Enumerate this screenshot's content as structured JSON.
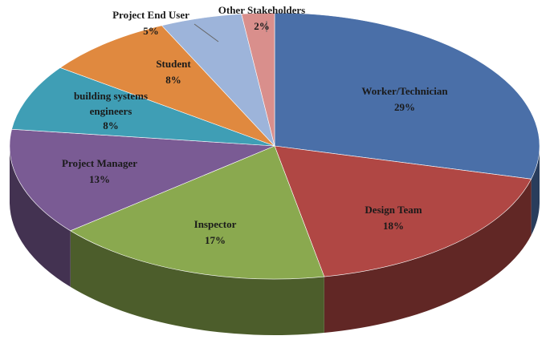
{
  "chart_data": {
    "type": "pie",
    "title": "",
    "slices": [
      {
        "label": "Worker/Technician",
        "value": 29,
        "display": "29%",
        "color": "#4a6fa8"
      },
      {
        "label": "Design Team",
        "value": 18,
        "display": "18%",
        "color": "#b04744"
      },
      {
        "label": "Inspector",
        "value": 17,
        "display": "17%",
        "color": "#8aa94f"
      },
      {
        "label": "Project Manager",
        "value": 13,
        "display": "13%",
        "color": "#7a5b94"
      },
      {
        "label": "building systems engineers",
        "label_lines": [
          "building systems",
          "engineers"
        ],
        "value": 8,
        "display": "8%",
        "color": "#3f9eb5"
      },
      {
        "label": "Student",
        "value": 8,
        "display": "8%",
        "color": "#e0893f"
      },
      {
        "label": "Project End User",
        "value": 5,
        "display": "5%",
        "color": "#9db4da"
      },
      {
        "label": "Other Stakeholders",
        "value": 2,
        "display": "2%",
        "color": "#d98f8c"
      }
    ],
    "legend": "none",
    "style": "3d-pie"
  }
}
